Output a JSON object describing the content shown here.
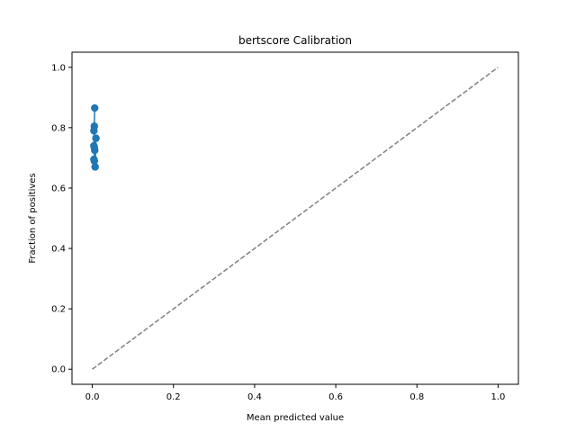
{
  "chart_data": {
    "type": "line",
    "title": "bertscore Calibration",
    "xlabel": "Mean predicted value",
    "ylabel": "Fraction of positives",
    "xlim": [
      -0.05,
      1.05
    ],
    "ylim": [
      -0.05,
      1.05
    ],
    "xticks": [
      0.0,
      0.2,
      0.4,
      0.6,
      0.8,
      1.0
    ],
    "yticks": [
      0.0,
      0.2,
      0.4,
      0.6,
      0.8,
      1.0
    ],
    "xtick_labels": [
      "0.0",
      "0.2",
      "0.4",
      "0.6",
      "0.8",
      "1.0"
    ],
    "ytick_labels": [
      "0.0",
      "0.2",
      "0.4",
      "0.6",
      "0.8",
      "1.0"
    ],
    "grid": false,
    "series": [
      {
        "color": "#1f77b4",
        "style": "solid-markers",
        "x": [
          0.006,
          0.005,
          0.004,
          0.004,
          0.005,
          0.006,
          0.004,
          0.005,
          0.009,
          0.007
        ],
        "y": [
          0.865,
          0.805,
          0.79,
          0.74,
          0.735,
          0.725,
          0.695,
          0.69,
          0.765,
          0.67
        ]
      },
      {
        "color": "#808080",
        "style": "dashed",
        "x": [
          0,
          1
        ],
        "y": [
          0,
          1
        ]
      }
    ]
  }
}
